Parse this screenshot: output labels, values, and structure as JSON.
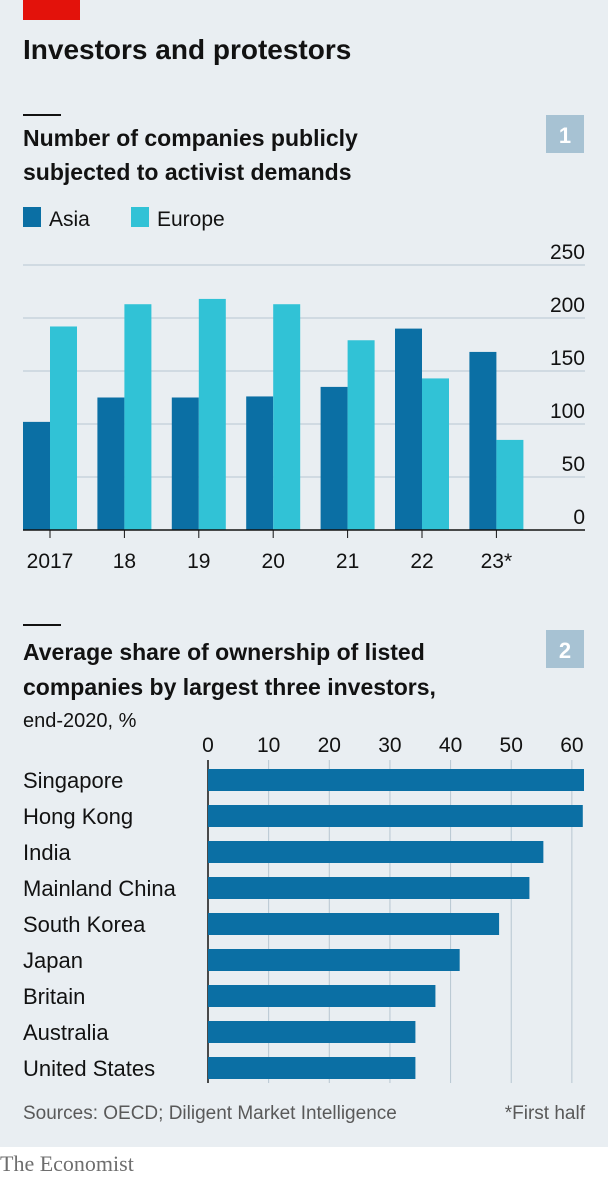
{
  "header": {
    "title": "Investors and protestors",
    "accent_color": "#e3120b"
  },
  "colors": {
    "asia": "#0b6fa4",
    "europe": "#31c2d6",
    "bar": "#0b6fa4",
    "grid": "#b7c6d1",
    "axis": "#121212",
    "number_badge": "#a7c2d3"
  },
  "chart_data": [
    {
      "type": "bar",
      "number": "1",
      "title": "Number of companies publicly subjected to activist demands",
      "title_lines": [
        "Number of companies publicly",
        "subjected to activist demands"
      ],
      "categories": [
        "2017",
        "18",
        "19",
        "20",
        "21",
        "22",
        "23*"
      ],
      "series": [
        {
          "name": "Asia",
          "values": [
            102,
            125,
            125,
            126,
            135,
            190,
            168
          ]
        },
        {
          "name": "Europe",
          "values": [
            192,
            213,
            218,
            213,
            179,
            143,
            85
          ]
        }
      ],
      "yticks": [
        0,
        50,
        100,
        150,
        200,
        250
      ],
      "ylim": [
        0,
        250
      ],
      "legend": "top-left",
      "grid": true
    },
    {
      "type": "bar",
      "orientation": "horizontal",
      "number": "2",
      "title": "Average share of ownership of listed companies by largest three investors,",
      "title_lines": [
        "Average share of ownership of listed",
        "companies by largest three investors,"
      ],
      "subtitle": "end-2020, %",
      "categories": [
        "Singapore",
        "Hong Kong",
        "India",
        "Mainland China",
        "South Korea",
        "Japan",
        "Britain",
        "Australia",
        "United States"
      ],
      "values": [
        62,
        61.8,
        55.3,
        53,
        48,
        41.5,
        37.5,
        34.2,
        34.2
      ],
      "xticks": [
        0,
        10,
        20,
        30,
        40,
        50,
        60
      ],
      "xlim": [
        0,
        62
      ],
      "grid": true
    }
  ],
  "footer": {
    "sources": "Sources: OECD; Diligent Market Intelligence",
    "note": "*First half",
    "brand": "The Economist"
  }
}
